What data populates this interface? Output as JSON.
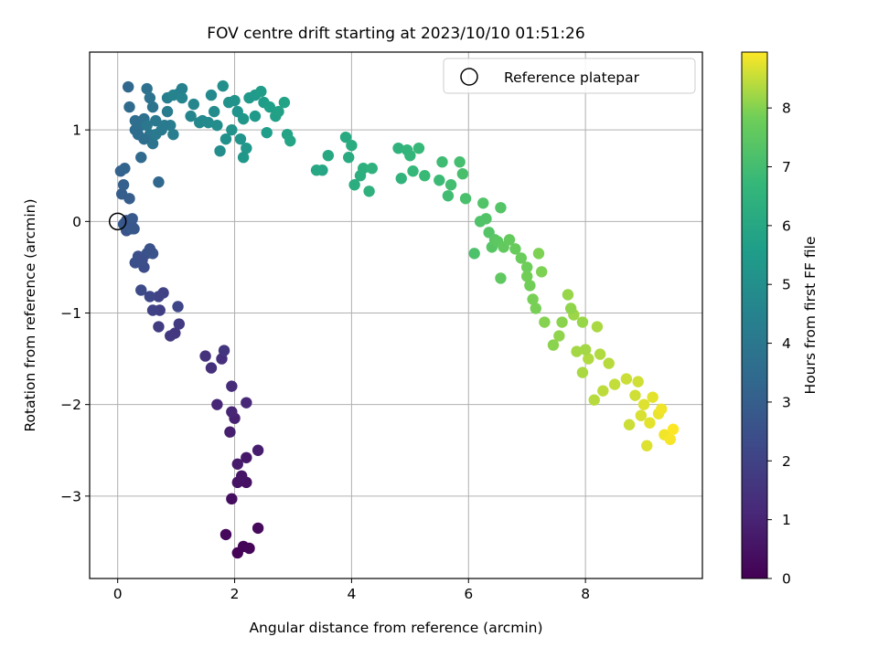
{
  "chart_data": {
    "type": "scatter",
    "title": "FOV centre drift starting at 2023/10/10 01:51:26",
    "xlabel": "Angular distance from reference (arcmin)",
    "ylabel": "Rotation from reference (arcmin)",
    "xlim": [
      -0.48,
      10.0
    ],
    "ylim": [
      -3.9,
      1.85
    ],
    "xticks": [
      0,
      2,
      4,
      6,
      8
    ],
    "yticks": [
      -3,
      -2,
      -1,
      0,
      1
    ],
    "grid": true,
    "colormap": "viridis",
    "colorbar": {
      "label": "Hours from first FF file",
      "min": 0,
      "max": 8.95,
      "ticks": [
        0,
        1,
        2,
        3,
        4,
        5,
        6,
        7,
        8
      ]
    },
    "legend": {
      "placement": "top-right",
      "entries": [
        "Reference platepar"
      ]
    },
    "reference_point": {
      "x": 0,
      "y": 0
    },
    "points": [
      [
        2.05,
        -3.62,
        0.05
      ],
      [
        2.15,
        -3.55,
        0.1
      ],
      [
        2.25,
        -3.57,
        0.15
      ],
      [
        1.85,
        -3.42,
        0.2
      ],
      [
        2.4,
        -3.35,
        0.25
      ],
      [
        1.95,
        -3.03,
        0.35
      ],
      [
        2.2,
        -2.85,
        0.45
      ],
      [
        2.05,
        -2.85,
        0.5
      ],
      [
        2.12,
        -2.78,
        0.55
      ],
      [
        2.2,
        -2.58,
        0.65
      ],
      [
        2.05,
        -2.65,
        0.75
      ],
      [
        2.4,
        -2.5,
        0.8
      ],
      [
        1.92,
        -2.3,
        0.85
      ],
      [
        2.0,
        -2.15,
        0.95
      ],
      [
        1.95,
        -2.08,
        1.05
      ],
      [
        1.7,
        -2.0,
        1.1
      ],
      [
        2.2,
        -1.98,
        1.15
      ],
      [
        1.95,
        -1.8,
        1.25
      ],
      [
        1.78,
        -1.5,
        1.35
      ],
      [
        1.6,
        -1.6,
        1.4
      ],
      [
        1.5,
        -1.47,
        1.45
      ],
      [
        1.82,
        -1.41,
        1.55
      ],
      [
        0.98,
        -1.22,
        1.65
      ],
      [
        0.9,
        -1.25,
        1.7
      ],
      [
        1.05,
        -1.12,
        1.75
      ],
      [
        0.7,
        -1.15,
        1.8
      ],
      [
        0.72,
        -0.97,
        1.9
      ],
      [
        0.6,
        -0.97,
        1.95
      ],
      [
        0.78,
        -0.78,
        2.0
      ],
      [
        0.7,
        -0.82,
        2.05
      ],
      [
        1.03,
        -0.93,
        2.15
      ],
      [
        0.55,
        -0.82,
        2.2
      ],
      [
        0.4,
        -0.75,
        2.3
      ],
      [
        0.45,
        -0.5,
        2.35
      ],
      [
        0.3,
        -0.45,
        2.45
      ],
      [
        0.35,
        -0.38,
        2.5
      ],
      [
        0.5,
        -0.35,
        2.55
      ],
      [
        0.6,
        -0.35,
        2.6
      ],
      [
        0.15,
        -0.1,
        2.65
      ],
      [
        0.23,
        -0.03,
        2.75
      ],
      [
        0.25,
        -0.08,
        2.8
      ],
      [
        0.1,
        -0.03,
        2.85
      ],
      [
        0.2,
        0.25,
        2.95
      ],
      [
        0.07,
        0.3,
        3.0
      ],
      [
        0.1,
        0.4,
        3.1
      ],
      [
        0.05,
        0.55,
        3.15
      ],
      [
        0.12,
        0.58,
        3.25
      ],
      [
        0.7,
        0.43,
        3.35
      ],
      [
        0.18,
        1.47,
        3.4
      ],
      [
        0.4,
        0.7,
        3.45
      ],
      [
        0.2,
        1.25,
        3.5
      ],
      [
        0.3,
        1.0,
        3.55
      ],
      [
        0.3,
        1.1,
        3.6
      ],
      [
        0.4,
        1.05,
        3.65
      ],
      [
        0.45,
        1.12,
        3.7
      ],
      [
        0.5,
        1.45,
        3.75
      ],
      [
        0.55,
        1.35,
        3.8
      ],
      [
        0.6,
        1.25,
        3.85
      ],
      [
        0.55,
        0.95,
        3.9
      ],
      [
        0.6,
        0.85,
        3.95
      ],
      [
        0.5,
        1.05,
        4.0
      ],
      [
        0.65,
        1.1,
        4.05
      ],
      [
        0.65,
        0.95,
        4.1
      ],
      [
        0.75,
        1.0,
        4.15
      ],
      [
        0.85,
        1.2,
        4.2
      ],
      [
        0.9,
        1.05,
        4.25
      ],
      [
        0.95,
        0.95,
        4.3
      ],
      [
        0.85,
        1.35,
        4.35
      ],
      [
        1.1,
        1.45,
        4.4
      ],
      [
        1.05,
        1.4,
        4.45
      ],
      [
        0.95,
        1.38,
        4.5
      ],
      [
        1.1,
        1.35,
        4.55
      ],
      [
        1.25,
        1.15,
        4.6
      ],
      [
        1.3,
        1.28,
        4.65
      ],
      [
        1.4,
        1.08,
        4.7
      ],
      [
        1.45,
        1.1,
        4.75
      ],
      [
        1.6,
        1.38,
        4.8
      ],
      [
        1.55,
        1.08,
        4.85
      ],
      [
        1.7,
        1.05,
        4.9
      ],
      [
        1.75,
        0.77,
        4.95
      ],
      [
        1.8,
        1.48,
        5.0
      ],
      [
        1.85,
        0.9,
        5.05
      ],
      [
        1.9,
        1.3,
        5.1
      ],
      [
        2.0,
        1.32,
        5.15
      ],
      [
        2.05,
        1.2,
        5.2
      ],
      [
        2.1,
        0.9,
        5.25
      ],
      [
        2.15,
        1.12,
        5.3
      ],
      [
        2.2,
        0.8,
        5.35
      ],
      [
        2.25,
        1.35,
        5.4
      ],
      [
        2.35,
        1.38,
        5.45
      ],
      [
        2.45,
        1.42,
        5.5
      ],
      [
        2.5,
        1.3,
        5.55
      ],
      [
        2.55,
        0.97,
        5.6
      ],
      [
        2.6,
        1.25,
        5.65
      ],
      [
        2.7,
        1.15,
        5.7
      ],
      [
        2.75,
        1.2,
        5.75
      ],
      [
        2.85,
        1.3,
        5.8
      ],
      [
        2.9,
        0.95,
        5.85
      ],
      [
        2.95,
        0.88,
        5.9
      ],
      [
        3.5,
        0.56,
        5.95
      ],
      [
        3.4,
        0.56,
        6.0
      ],
      [
        3.6,
        0.72,
        6.05
      ],
      [
        3.9,
        0.92,
        6.1
      ],
      [
        3.95,
        0.7,
        6.15
      ],
      [
        4.0,
        0.83,
        6.2
      ],
      [
        4.05,
        0.4,
        6.25
      ],
      [
        4.15,
        0.5,
        6.3
      ],
      [
        4.2,
        0.58,
        6.35
      ],
      [
        4.3,
        0.33,
        6.4
      ],
      [
        4.35,
        0.58,
        6.45
      ],
      [
        4.8,
        0.8,
        6.5
      ],
      [
        4.85,
        0.47,
        6.55
      ],
      [
        4.95,
        0.78,
        6.6
      ],
      [
        5.0,
        0.72,
        6.65
      ],
      [
        5.05,
        0.55,
        6.7
      ],
      [
        5.15,
        0.8,
        6.75
      ],
      [
        5.25,
        0.5,
        6.8
      ],
      [
        5.5,
        0.45,
        6.85
      ],
      [
        5.55,
        0.65,
        6.9
      ],
      [
        5.65,
        0.28,
        6.95
      ],
      [
        5.7,
        0.4,
        7.0
      ],
      [
        5.85,
        0.65,
        7.05
      ],
      [
        5.9,
        0.52,
        7.1
      ],
      [
        5.95,
        0.25,
        7.15
      ],
      [
        6.1,
        -0.35,
        7.2
      ],
      [
        6.2,
        0.0,
        7.25
      ],
      [
        6.3,
        0.03,
        7.3
      ],
      [
        6.35,
        -0.12,
        7.35
      ],
      [
        6.4,
        -0.28,
        7.4
      ],
      [
        6.45,
        -0.2,
        7.45
      ],
      [
        6.5,
        -0.22,
        7.5
      ],
      [
        6.55,
        -0.62,
        7.55
      ],
      [
        6.6,
        -0.28,
        7.6
      ],
      [
        6.7,
        -0.2,
        7.65
      ],
      [
        6.8,
        -0.3,
        7.7
      ],
      [
        6.9,
        -0.4,
        7.75
      ],
      [
        7.0,
        -0.5,
        7.8
      ],
      [
        7.05,
        -0.7,
        7.85
      ],
      [
        7.15,
        -0.95,
        7.9
      ],
      [
        7.2,
        -0.35,
        7.95
      ],
      [
        7.3,
        -1.1,
        8.0
      ],
      [
        7.45,
        -1.35,
        8.05
      ],
      [
        7.55,
        -1.25,
        8.1
      ],
      [
        7.7,
        -0.8,
        8.15
      ],
      [
        7.8,
        -1.02,
        8.2
      ],
      [
        7.85,
        -1.42,
        8.25
      ],
      [
        7.95,
        -1.65,
        8.3
      ],
      [
        8.05,
        -1.5,
        8.35
      ],
      [
        8.15,
        -1.95,
        8.4
      ],
      [
        8.3,
        -1.85,
        8.45
      ],
      [
        8.5,
        -1.78,
        8.5
      ],
      [
        8.7,
        -1.72,
        8.55
      ],
      [
        8.85,
        -1.9,
        8.6
      ],
      [
        8.95,
        -2.12,
        8.65
      ],
      [
        9.05,
        -2.45,
        8.7
      ],
      [
        9.15,
        -1.92,
        8.75
      ],
      [
        9.25,
        -2.1,
        8.8
      ],
      [
        9.35,
        -2.33,
        8.85
      ],
      [
        9.45,
        -2.38,
        8.9
      ],
      [
        9.5,
        -2.27,
        8.95
      ],
      [
        6.55,
        0.15,
        7.35
      ],
      [
        6.25,
        0.2,
        7.3
      ],
      [
        7.1,
        -0.85,
        7.9
      ],
      [
        7.0,
        -0.6,
        7.85
      ],
      [
        7.25,
        -0.55,
        7.95
      ],
      [
        7.6,
        -1.1,
        8.05
      ],
      [
        7.75,
        -0.95,
        8.1
      ],
      [
        7.95,
        -1.1,
        8.15
      ],
      [
        8.0,
        -1.4,
        8.25
      ],
      [
        8.25,
        -1.45,
        8.35
      ],
      [
        8.4,
        -1.55,
        8.4
      ],
      [
        8.2,
        -1.15,
        8.3
      ],
      [
        8.75,
        -2.22,
        8.55
      ],
      [
        8.9,
        -1.75,
        8.6
      ],
      [
        9.0,
        -2.0,
        8.7
      ],
      [
        9.1,
        -2.2,
        8.75
      ],
      [
        9.3,
        -2.05,
        8.85
      ],
      [
        0.15,
        0.01,
        2.7
      ],
      [
        0.28,
        -0.08,
        2.75
      ],
      [
        0.25,
        0.03,
        2.8
      ],
      [
        0.42,
        -0.42,
        2.45
      ],
      [
        0.55,
        -0.3,
        2.55
      ],
      [
        0.3,
        -0.45,
        2.5
      ],
      [
        1.65,
        1.2,
        4.85
      ],
      [
        1.95,
        1.0,
        5.1
      ],
      [
        2.35,
        1.15,
        5.4
      ],
      [
        2.15,
        0.7,
        5.3
      ],
      [
        0.35,
        0.95,
        3.55
      ],
      [
        0.45,
        0.9,
        3.65
      ],
      [
        0.8,
        1.05,
        4.15
      ]
    ]
  }
}
